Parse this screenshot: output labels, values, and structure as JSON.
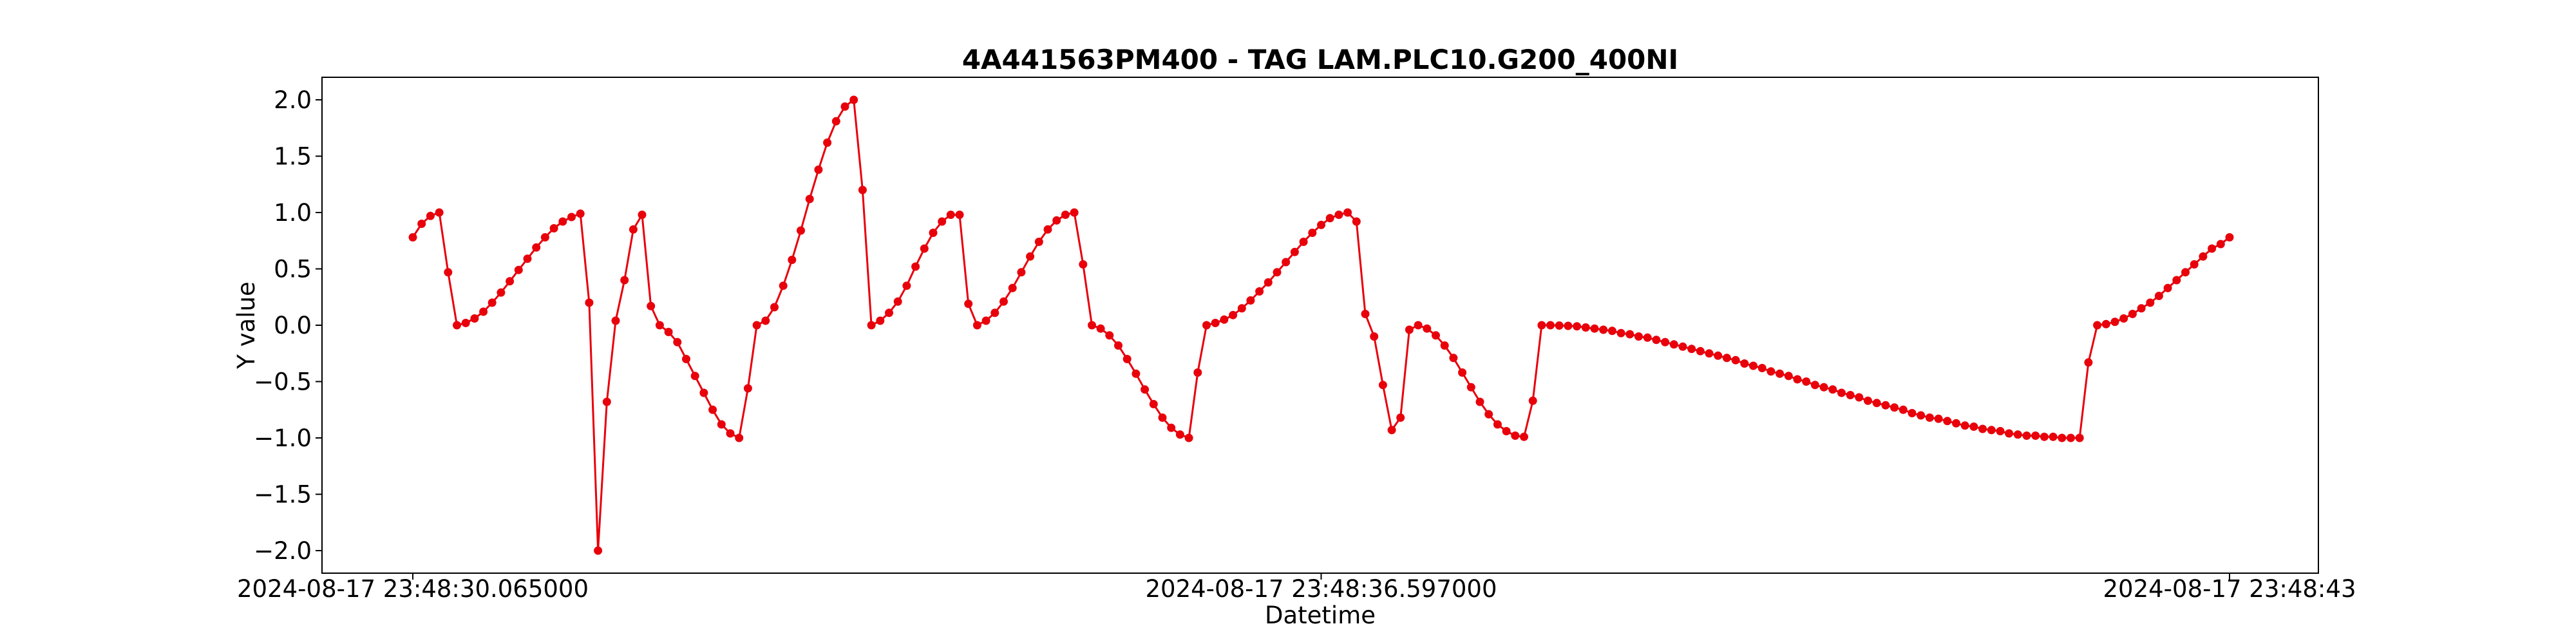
{
  "chart_data": {
    "type": "line",
    "title": "4A441563PM400 - TAG LAM.PLC10.G200_400NI",
    "xlabel": "Datetime",
    "ylabel": "Y value",
    "x_tick_labels": [
      "2024-08-17 23:48:30.065000",
      "2024-08-17 23:48:36.597000",
      "2024-08-17 23:48:43"
    ],
    "x_range": [
      "2024-08-17 23:48:30.065000",
      "2024-08-17 23:48:43"
    ],
    "y_ticks": [
      -2.0,
      -1.5,
      -1.0,
      -0.5,
      0.0,
      0.5,
      1.0,
      1.5,
      2.0
    ],
    "y_tick_labels": [
      "−2.0",
      "−1.5",
      "−1.0",
      "−0.5",
      "0.0",
      "0.5",
      "1.0",
      "1.5",
      "2.0"
    ],
    "ylim": [
      -2.2,
      2.2
    ],
    "grid": false,
    "legend": false,
    "colors": {
      "series": "#e8000b",
      "axes": "#000000",
      "background": "#ffffff"
    },
    "series": [
      {
        "marker": "circle",
        "values": [
          0.78,
          0.9,
          0.97,
          1.0,
          0.47,
          0.0,
          0.02,
          0.06,
          0.12,
          0.2,
          0.29,
          0.39,
          0.49,
          0.59,
          0.69,
          0.78,
          0.86,
          0.92,
          0.96,
          0.99,
          0.2,
          -2.0,
          -0.68,
          0.04,
          0.4,
          0.85,
          0.98,
          0.17,
          0.0,
          -0.06,
          -0.15,
          -0.3,
          -0.45,
          -0.6,
          -0.75,
          -0.88,
          -0.96,
          -1.0,
          -0.56,
          0.0,
          0.04,
          0.16,
          0.35,
          0.58,
          0.84,
          1.12,
          1.38,
          1.62,
          1.81,
          1.94,
          2.0,
          1.2,
          0.0,
          0.04,
          0.11,
          0.21,
          0.35,
          0.52,
          0.68,
          0.82,
          0.92,
          0.98,
          0.98,
          0.19,
          0.0,
          0.04,
          0.11,
          0.21,
          0.33,
          0.47,
          0.61,
          0.74,
          0.85,
          0.93,
          0.98,
          1.0,
          0.54,
          0.0,
          -0.03,
          -0.09,
          -0.18,
          -0.3,
          -0.43,
          -0.57,
          -0.7,
          -0.82,
          -0.91,
          -0.97,
          -1.0,
          -0.42,
          0.0,
          0.02,
          0.05,
          0.09,
          0.15,
          0.22,
          0.3,
          0.38,
          0.47,
          0.56,
          0.65,
          0.74,
          0.82,
          0.89,
          0.95,
          0.98,
          1.0,
          0.92,
          0.1,
          -0.1,
          -0.53,
          -0.93,
          -0.82,
          -0.04,
          0.0,
          -0.03,
          -0.09,
          -0.18,
          -0.29,
          -0.42,
          -0.55,
          -0.68,
          -0.79,
          -0.88,
          -0.94,
          -0.98,
          -0.99,
          -0.67,
          0.0,
          0.0,
          -0.003,
          -0.006,
          -0.01,
          -0.02,
          -0.03,
          -0.04,
          -0.05,
          -0.07,
          -0.08,
          -0.1,
          -0.11,
          -0.13,
          -0.15,
          -0.17,
          -0.19,
          -0.21,
          -0.23,
          -0.25,
          -0.27,
          -0.29,
          -0.31,
          -0.34,
          -0.36,
          -0.38,
          -0.41,
          -0.43,
          -0.45,
          -0.48,
          -0.5,
          -0.53,
          -0.55,
          -0.57,
          -0.6,
          -0.62,
          -0.64,
          -0.67,
          -0.69,
          -0.71,
          -0.73,
          -0.75,
          -0.78,
          -0.8,
          -0.82,
          -0.83,
          -0.85,
          -0.87,
          -0.89,
          -0.9,
          -0.92,
          -0.93,
          -0.94,
          -0.96,
          -0.97,
          -0.98,
          -0.98,
          -0.99,
          -0.99,
          -1.0,
          -1.0,
          -1.0,
          -0.33,
          0.0,
          0.01,
          0.03,
          0.06,
          0.1,
          0.15,
          0.2,
          0.26,
          0.33,
          0.4,
          0.47,
          0.54,
          0.61,
          0.68,
          0.72,
          0.78
        ]
      }
    ]
  }
}
